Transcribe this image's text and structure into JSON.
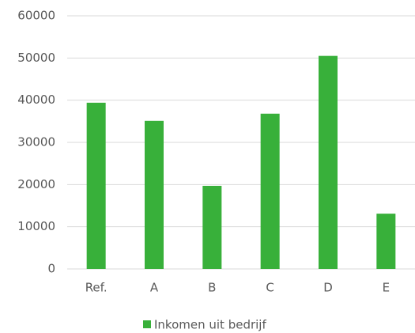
{
  "chart_data": {
    "type": "bar",
    "categories": [
      "Ref.",
      "A",
      "B",
      "C",
      "D",
      "E"
    ],
    "series": [
      {
        "name": "Inkomen uit bedrijf",
        "color": "#38b03a",
        "values": [
          39400,
          35100,
          19700,
          36800,
          50500,
          13100
        ]
      }
    ],
    "ylim": [
      0,
      60000
    ],
    "yticks": [
      0,
      10000,
      20000,
      30000,
      40000,
      50000,
      60000
    ],
    "grid": true,
    "legend": "bottom"
  }
}
